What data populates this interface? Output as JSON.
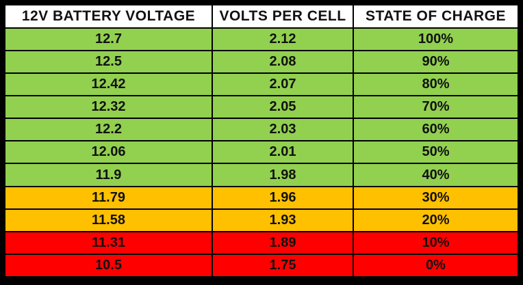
{
  "table": {
    "headers": [
      "12V BATTERY VOLTAGE",
      "VOLTS PER CELL",
      "STATE OF CHARGE"
    ],
    "colors": {
      "header": "#ffffff",
      "green": "#92d050",
      "orange": "#ffc000",
      "red": "#ff0000",
      "border": "#000000"
    },
    "rows": [
      {
        "voltage": "12.7",
        "per_cell": "2.12",
        "charge": "100%",
        "band": "green"
      },
      {
        "voltage": "12.5",
        "per_cell": "2.08",
        "charge": "90%",
        "band": "green"
      },
      {
        "voltage": "12.42",
        "per_cell": "2.07",
        "charge": "80%",
        "band": "green"
      },
      {
        "voltage": "12.32",
        "per_cell": "2.05",
        "charge": "70%",
        "band": "green"
      },
      {
        "voltage": "12.2",
        "per_cell": "2.03",
        "charge": "60%",
        "band": "green"
      },
      {
        "voltage": "12.06",
        "per_cell": "2.01",
        "charge": "50%",
        "band": "green"
      },
      {
        "voltage": "11.9",
        "per_cell": "1.98",
        "charge": "40%",
        "band": "green"
      },
      {
        "voltage": "11.79",
        "per_cell": "1.96",
        "charge": "30%",
        "band": "orange"
      },
      {
        "voltage": "11.58",
        "per_cell": "1.93",
        "charge": "20%",
        "band": "orange"
      },
      {
        "voltage": "11.31",
        "per_cell": "1.89",
        "charge": "10%",
        "band": "red"
      },
      {
        "voltage": "10.5",
        "per_cell": "1.75",
        "charge": "0%",
        "band": "red"
      }
    ]
  }
}
